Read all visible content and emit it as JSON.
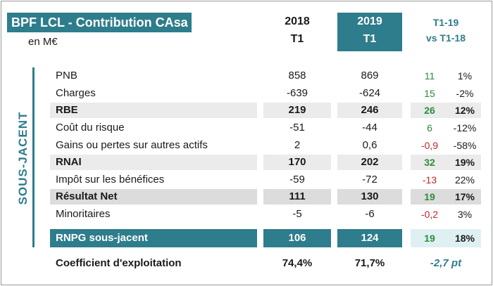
{
  "title": "BPF LCL - Contribution CAsa",
  "unit": "en M€",
  "side_label": "SOUS-JACENT",
  "columns": {
    "y2018": {
      "year": "2018",
      "period": "T1"
    },
    "y2019": {
      "year": "2019",
      "period": "T1"
    },
    "variation": {
      "line1": "T1-19",
      "line2": "vs T1-18"
    }
  },
  "rows": [
    {
      "label": "PNB",
      "v2018": "858",
      "v2019": "869",
      "delta": "11",
      "pct": "1%"
    },
    {
      "label": "Charges",
      "v2018": "-639",
      "v2019": "-624",
      "delta": "15",
      "pct": "-2%"
    },
    {
      "label": "RBE",
      "v2018": "219",
      "v2019": "246",
      "delta": "26",
      "pct": "12%"
    },
    {
      "label": "Coût du risque",
      "v2018": "-51",
      "v2019": "-44",
      "delta": "6",
      "pct": "-12%"
    },
    {
      "label": "Gains ou pertes sur autres actifs",
      "v2018": "2",
      "v2019": "0,6",
      "delta": "-0,9",
      "pct": "-58%"
    },
    {
      "label": "RNAI",
      "v2018": "170",
      "v2019": "202",
      "delta": "32",
      "pct": "19%"
    },
    {
      "label": "Impôt sur les bénéfices",
      "v2018": "-59",
      "v2019": "-72",
      "delta": "-13",
      "pct": "22%"
    },
    {
      "label": "Résultat Net",
      "v2018": "111",
      "v2019": "130",
      "delta": "19",
      "pct": "17%"
    },
    {
      "label": "Minoritaires",
      "v2018": "-5",
      "v2019": "-6",
      "delta": "-0,2",
      "pct": "3%"
    }
  ],
  "rnpg": {
    "label": "RNPG sous-jacent",
    "v2018": "106",
    "v2019": "124",
    "delta": "19",
    "pct": "18%"
  },
  "coef": {
    "label": "Coefficient d'exploitation",
    "v2018": "74,4%",
    "v2019": "71,7%",
    "variation": "-2,7 pt"
  },
  "colors": {
    "teal": "#2e7d8c",
    "positive": "#2e8b3c",
    "negative": "#c0262e"
  }
}
